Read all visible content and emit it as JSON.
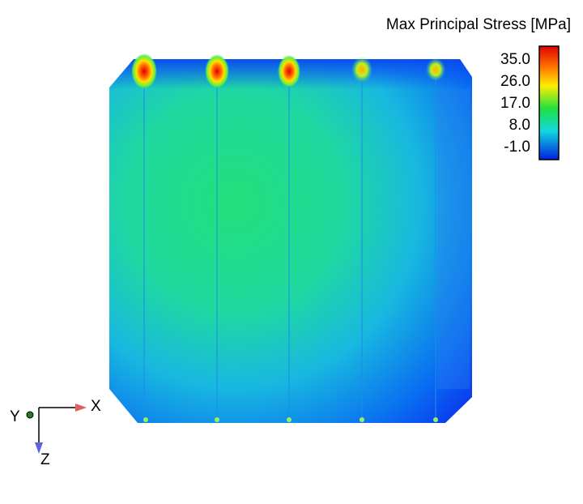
{
  "legend": {
    "title": "Max Principal Stress [MPa]",
    "ticks": [
      "35.0",
      "26.0",
      "17.0",
      "8.0",
      "-1.0"
    ]
  },
  "triad": {
    "x": "X",
    "y": "Y",
    "z": "Z"
  }
}
